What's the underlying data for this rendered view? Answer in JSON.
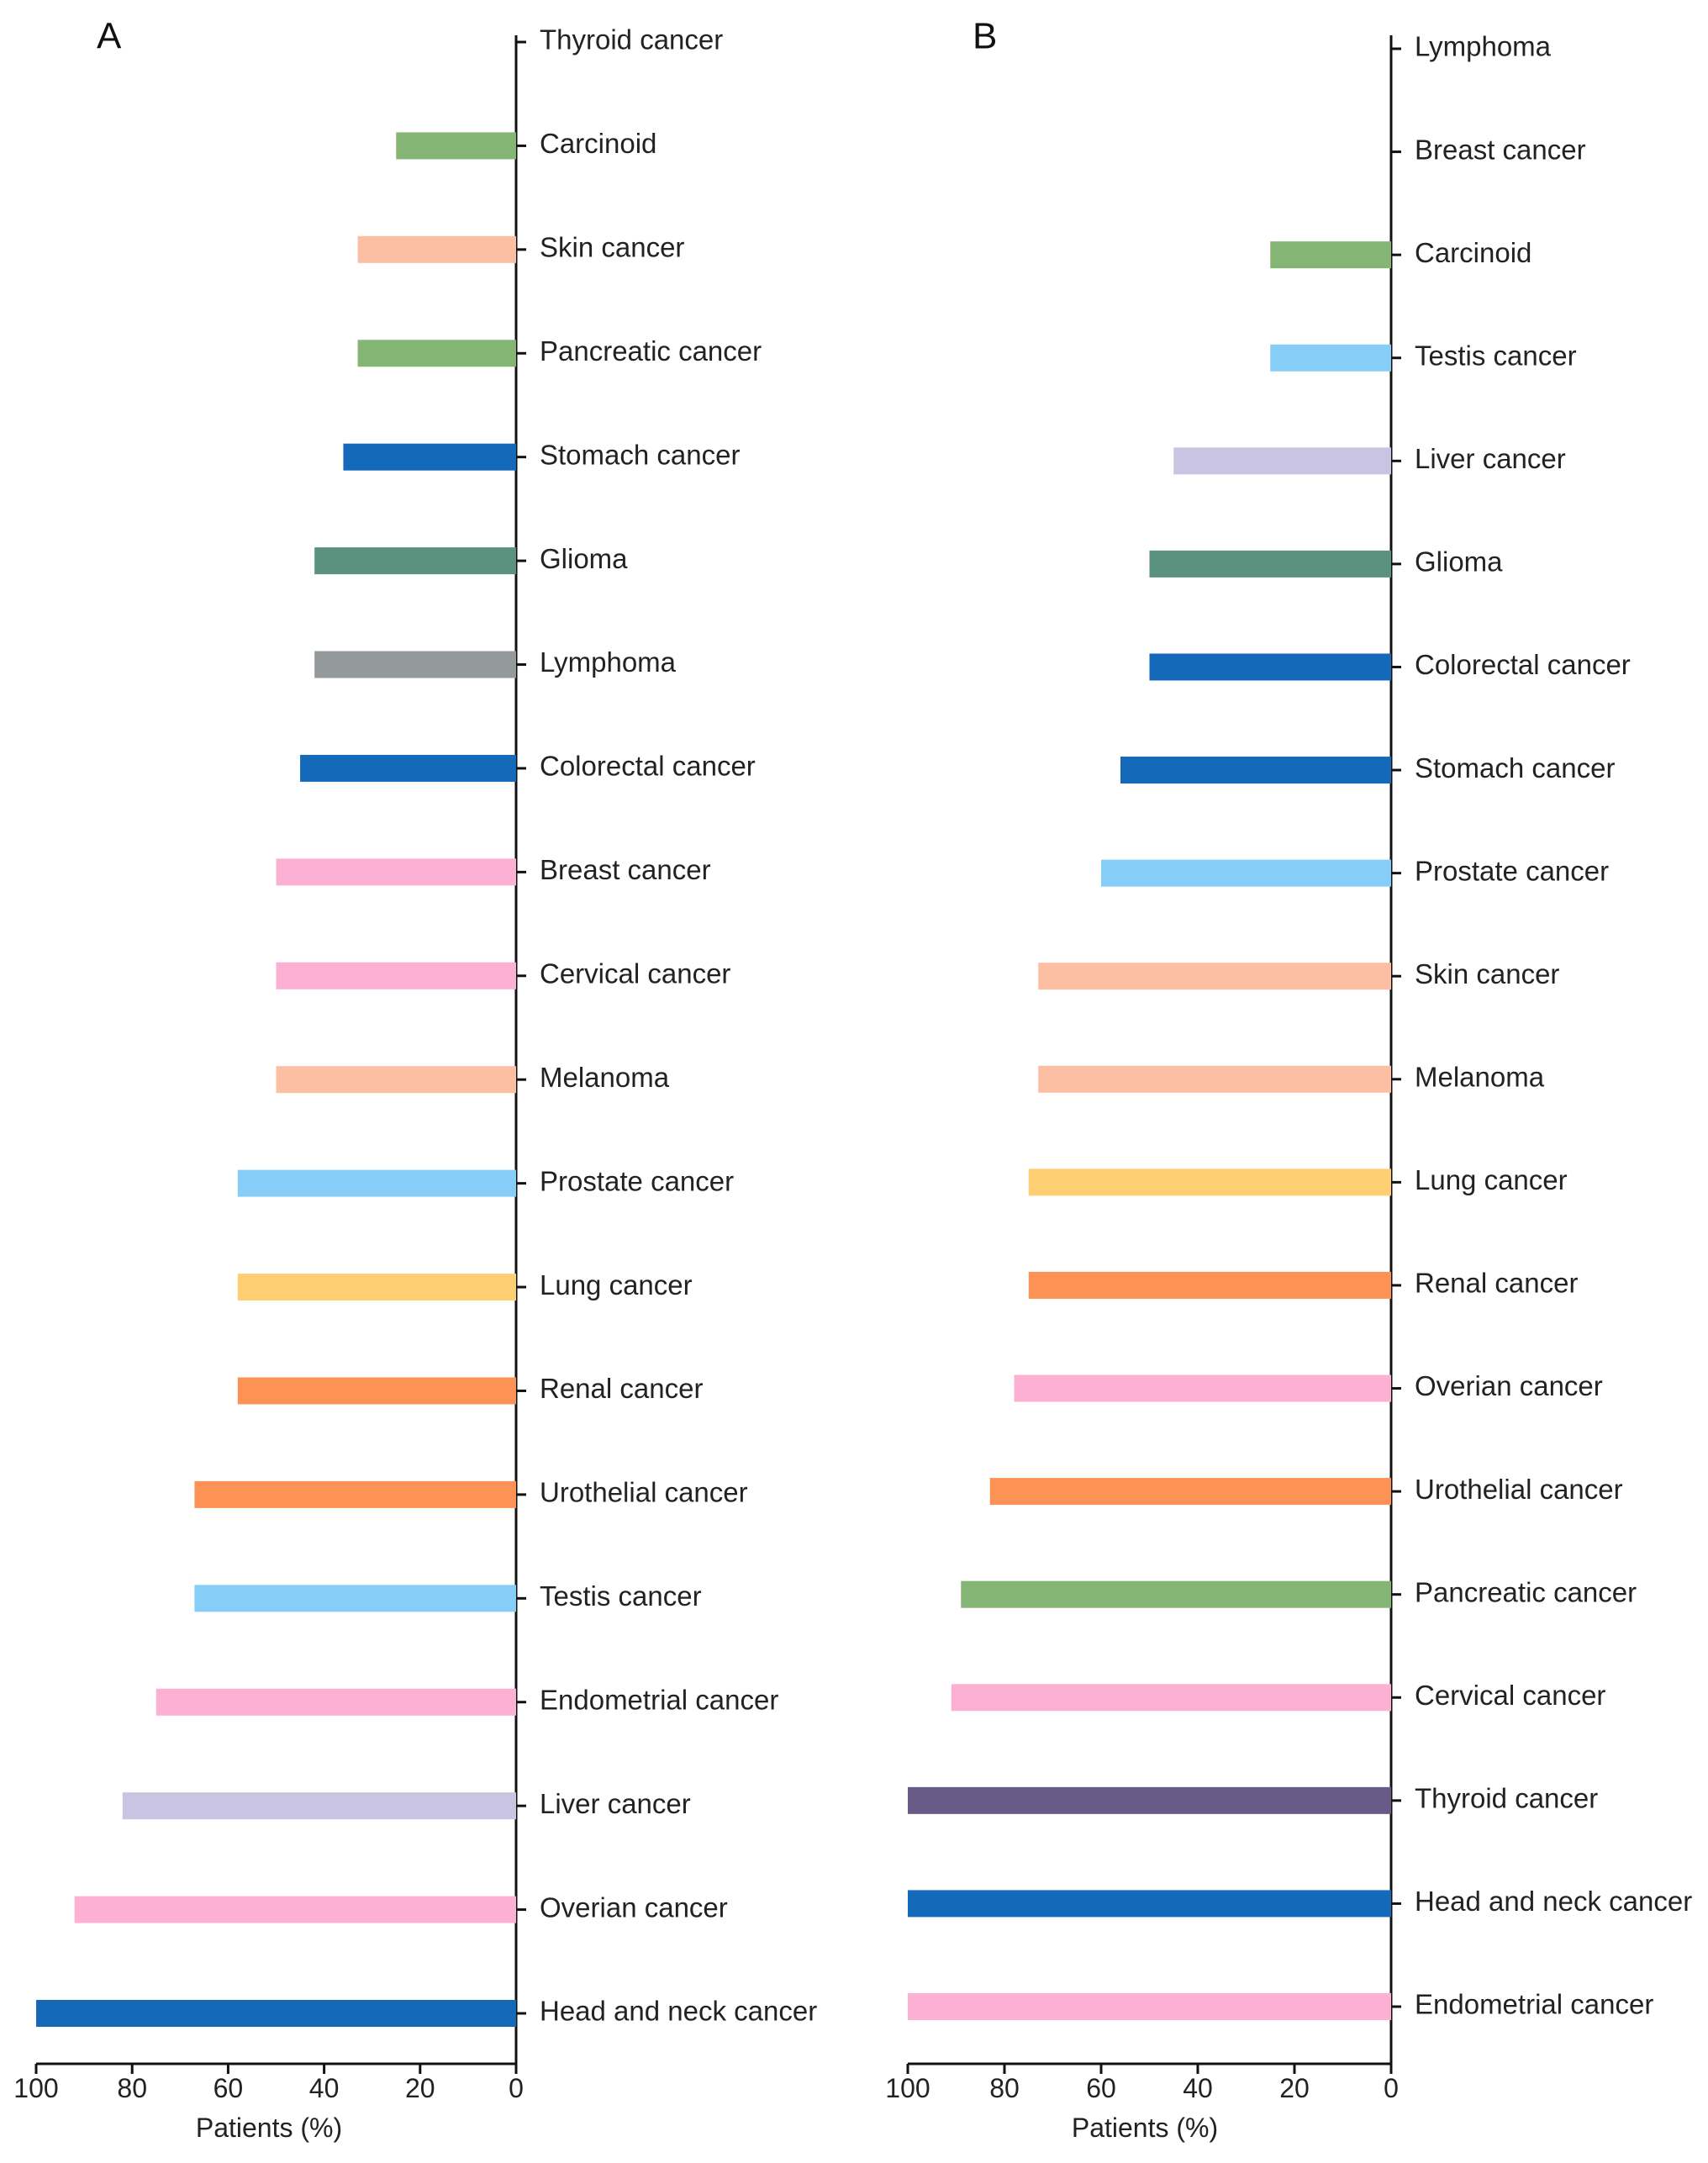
{
  "chart_data": [
    {
      "panel": "A",
      "type": "bar",
      "orientation": "horizontal-reversed",
      "xlabel": "Patients (%)",
      "xlim": [
        0,
        100
      ],
      "xticks": [
        "100",
        "80",
        "60",
        "40",
        "20",
        "0"
      ],
      "categories": [
        {
          "label": "Thyroid cancer",
          "value": 0,
          "color": "#675A86"
        },
        {
          "label": "Carcinoid",
          "value": 25,
          "color": "#85B575"
        },
        {
          "label": "Skin cancer",
          "value": 33,
          "color": "#FDBFA3"
        },
        {
          "label": "Pancreatic cancer",
          "value": 33,
          "color": "#85B575"
        },
        {
          "label": "Stomach cancer",
          "value": 36,
          "color": "#1569B9"
        },
        {
          "label": "Glioma",
          "value": 42,
          "color": "#5B927F"
        },
        {
          "label": "Lymphoma",
          "value": 42,
          "color": "#949A9C"
        },
        {
          "label": "Colorectal cancer",
          "value": 45,
          "color": "#1569B9"
        },
        {
          "label": "Breast cancer",
          "value": 50,
          "color": "#FCB0D3"
        },
        {
          "label": "Cervical cancer",
          "value": 50,
          "color": "#FCB0D3"
        },
        {
          "label": "Melanoma",
          "value": 50,
          "color": "#FDBFA3"
        },
        {
          "label": "Prostate cancer",
          "value": 58,
          "color": "#86CDF8"
        },
        {
          "label": "Lung cancer",
          "value": 58,
          "color": "#FDCE72"
        },
        {
          "label": "Renal cancer",
          "value": 58,
          "color": "#FC9256"
        },
        {
          "label": "Urothelial cancer",
          "value": 67,
          "color": "#FC9256"
        },
        {
          "label": "Testis cancer",
          "value": 67,
          "color": "#86CDF8"
        },
        {
          "label": "Endometrial cancer",
          "value": 75,
          "color": "#FCB0D3"
        },
        {
          "label": "Liver cancer",
          "value": 82,
          "color": "#C9C4E2"
        },
        {
          "label": "Overian cancer",
          "value": 92,
          "color": "#FCB0D3"
        },
        {
          "label": "Head and neck cancer",
          "value": 100,
          "color": "#1569B9"
        }
      ]
    },
    {
      "panel": "B",
      "type": "bar",
      "orientation": "horizontal-reversed",
      "xlabel": "Patients (%)",
      "xlim": [
        0,
        100
      ],
      "xticks": [
        "100",
        "80",
        "60",
        "40",
        "20",
        "0"
      ],
      "categories": [
        {
          "label": "Lymphoma",
          "value": 0,
          "color": "#949A9C"
        },
        {
          "label": "Breast cancer",
          "value": 0,
          "color": "#FCB0D3"
        },
        {
          "label": "Carcinoid",
          "value": 25,
          "color": "#85B575"
        },
        {
          "label": "Testis cancer",
          "value": 25,
          "color": "#86CDF8"
        },
        {
          "label": "Liver cancer",
          "value": 45,
          "color": "#C9C4E2"
        },
        {
          "label": "Glioma",
          "value": 50,
          "color": "#5B927F"
        },
        {
          "label": "Colorectal cancer",
          "value": 50,
          "color": "#1569B9"
        },
        {
          "label": "Stomach cancer",
          "value": 56,
          "color": "#1569B9"
        },
        {
          "label": "Prostate cancer",
          "value": 60,
          "color": "#86CDF8"
        },
        {
          "label": "Skin cancer",
          "value": 73,
          "color": "#FDBFA3"
        },
        {
          "label": "Melanoma",
          "value": 73,
          "color": "#FDBFA3"
        },
        {
          "label": "Lung cancer",
          "value": 75,
          "color": "#FDCE72"
        },
        {
          "label": "Renal cancer",
          "value": 75,
          "color": "#FC9256"
        },
        {
          "label": "Overian cancer",
          "value": 78,
          "color": "#FCB0D3"
        },
        {
          "label": "Urothelial cancer",
          "value": 83,
          "color": "#FC9256"
        },
        {
          "label": "Pancreatic cancer",
          "value": 89,
          "color": "#85B575"
        },
        {
          "label": "Cervical cancer",
          "value": 91,
          "color": "#FCB0D3"
        },
        {
          "label": "Thyroid cancer",
          "value": 100,
          "color": "#675A86"
        },
        {
          "label": "Head and neck cancer",
          "value": 100,
          "color": "#1569B9"
        },
        {
          "label": "Endometrial cancer",
          "value": 100,
          "color": "#FCB0D3"
        }
      ]
    }
  ]
}
